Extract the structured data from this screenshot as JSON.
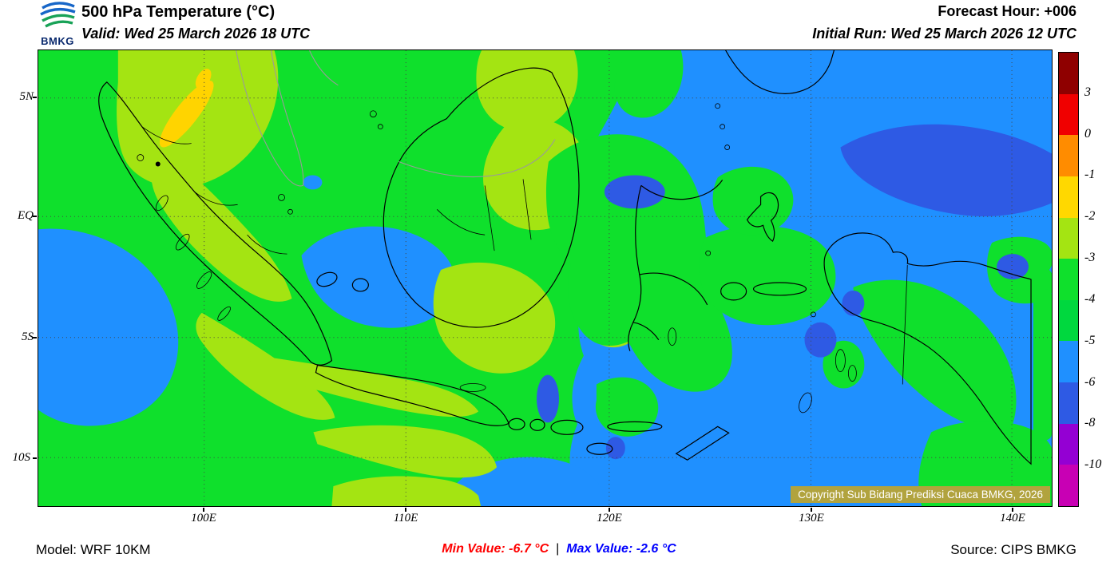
{
  "header": {
    "logo_text": "BMKG",
    "title": "500 hPa Temperature (°C)",
    "valid": "Valid: Wed 25 March 2026 18 UTC",
    "forecast_hour": "Forecast Hour: +006",
    "initial_run": "Initial Run: Wed 25 March 2026 12 UTC"
  },
  "map": {
    "lat_labels": [
      "5N",
      "EQ",
      "5S",
      "10S"
    ],
    "lon_labels": [
      "100E",
      "110E",
      "120E",
      "130E",
      "140E"
    ],
    "copyright": "Copyright Sub Bidang Prediksi Cuaca BMKG, 2026"
  },
  "colorbar": {
    "tick_labels": [
      "3",
      "0",
      "-1",
      "-2",
      "-3",
      "-4",
      "-5",
      "-6",
      "-8",
      "-10"
    ],
    "segments": [
      {
        "range": "above 3",
        "color": "#8f0000"
      },
      {
        "range": "0 to 3",
        "color": "#f00000"
      },
      {
        "range": "-1 to 0",
        "color": "#ff8c00"
      },
      {
        "range": "-2 to -1",
        "color": "#ffd800"
      },
      {
        "range": "-3 to -2",
        "color": "#a4e412"
      },
      {
        "range": "-4 to -3",
        "color": "#0fe02c"
      },
      {
        "range": "-5 to -4",
        "color": "#00d83e"
      },
      {
        "range": "-6 to -5",
        "color": "#1f90ff"
      },
      {
        "range": "-8 to -6",
        "color": "#2e5ae4"
      },
      {
        "range": "-10 to -8",
        "color": "#9400d3"
      },
      {
        "range": "below -10",
        "color": "#c800b4"
      }
    ]
  },
  "footer": {
    "model": "Model: WRF 10KM",
    "min_text": "Min Value: -6.7 °C",
    "separator": "|",
    "max_text": "Max Value: -2.6 °C",
    "source": "Source: CIPS BMKG"
  },
  "palette": {
    "map_green": "#0fe02c",
    "map_yellow_green": "#a4e412",
    "map_yellow": "#ffd400",
    "map_blue": "#1f90ff",
    "map_dark_blue": "#2e5ae4",
    "min_color": "#ff0000",
    "max_color": "#0000ff",
    "copyright_bg": "#b1a33e"
  },
  "chart_data": {
    "type": "heatmap",
    "title": "500 hPa Temperature (°C)",
    "valid_time": "Wed 25 March 2026 18 UTC",
    "initial_run": "Wed 25 March 2026 12 UTC",
    "forecast_hour": "+006",
    "model": "WRF 10KM",
    "source": "CIPS BMKG",
    "x_ticks": [
      "100E",
      "110E",
      "120E",
      "130E",
      "140E"
    ],
    "y_ticks": [
      "5N",
      "EQ",
      "5S",
      "10S"
    ],
    "scale_boundaries_c": [
      3,
      0,
      -1,
      -2,
      -3,
      -4,
      -5,
      -6,
      -8,
      -10
    ],
    "min_value_c": -6.7,
    "max_value_c": -2.6,
    "legend_position": "right",
    "grid": "dotted"
  }
}
